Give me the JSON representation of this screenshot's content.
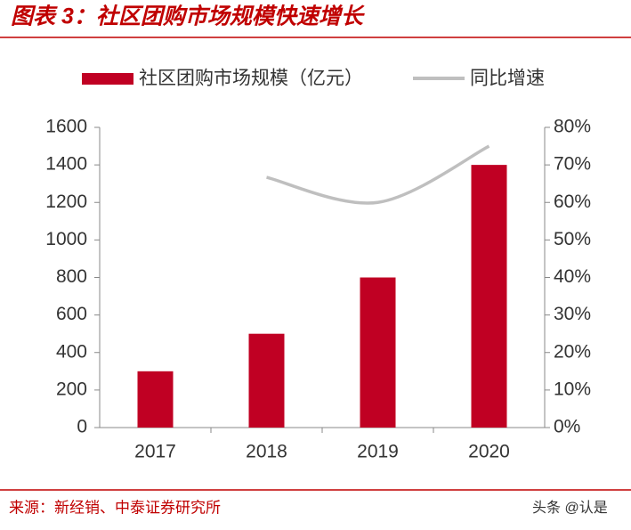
{
  "chart_data": {
    "type": "combo",
    "title": "图表 3：社区团购市场规模快速增长",
    "categories": [
      "2017",
      "2018",
      "2019",
      "2020"
    ],
    "series": [
      {
        "name": "社区团购市场规模（亿元）",
        "type": "bar",
        "color": "#c00023",
        "values": [
          300,
          500,
          800,
          1400
        ]
      },
      {
        "name": "同比增速",
        "type": "line",
        "color": "#bfbfbf",
        "axis": "y2",
        "values": [
          null,
          66.7,
          60,
          75
        ]
      }
    ],
    "ylim": [
      0,
      1600
    ],
    "yticks": [
      0,
      200,
      400,
      600,
      800,
      1000,
      1200,
      1400,
      1600
    ],
    "y2lim": [
      0,
      80
    ],
    "y2ticks": [
      {
        "value": 0,
        "label": "0%"
      },
      {
        "value": 10,
        "label": "10%"
      },
      {
        "value": 20,
        "label": "20%"
      },
      {
        "value": 30,
        "label": "30%"
      },
      {
        "value": 40,
        "label": "40%"
      },
      {
        "value": 50,
        "label": "50%"
      },
      {
        "value": 60,
        "label": "60%"
      },
      {
        "value": 70,
        "label": "70%"
      },
      {
        "value": 80,
        "label": "80%"
      }
    ],
    "legend": "top"
  },
  "source": "来源：新经销、中泰证券研究所",
  "watermark": "头条 @认是"
}
